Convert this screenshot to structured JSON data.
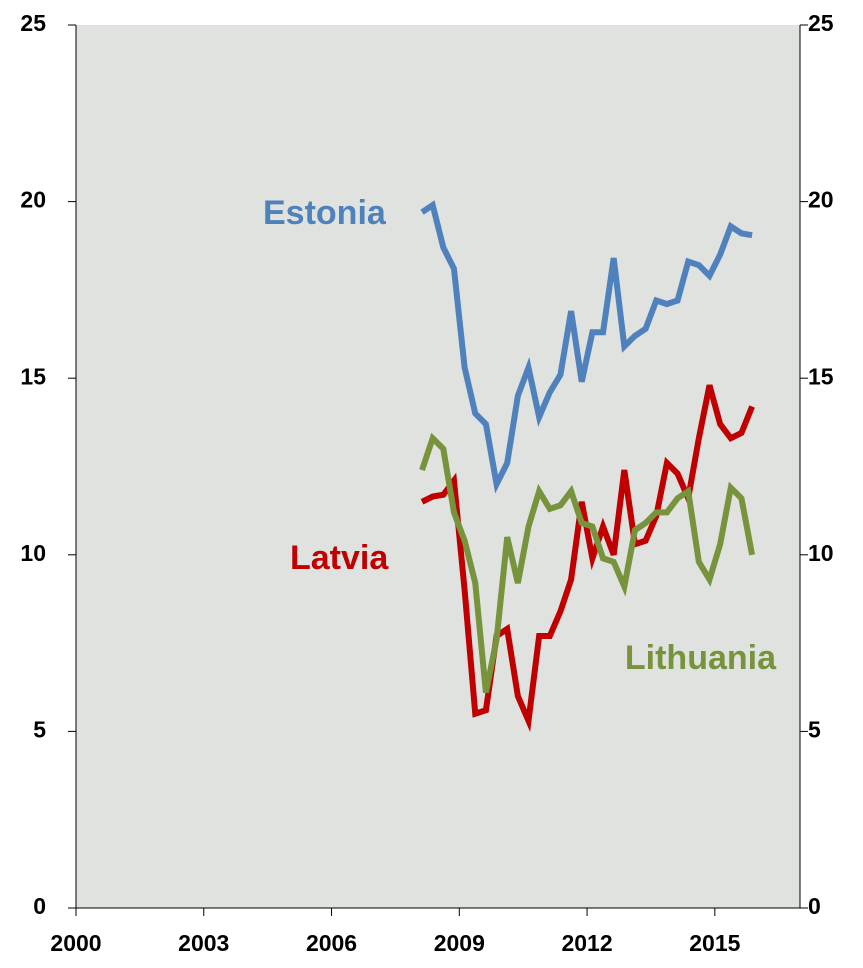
{
  "chart_data": {
    "type": "line",
    "x": [
      2008.125,
      2008.375,
      2008.625,
      2008.875,
      2009.125,
      2009.375,
      2009.625,
      2009.875,
      2010.125,
      2010.375,
      2010.625,
      2010.875,
      2011.125,
      2011.375,
      2011.625,
      2011.875,
      2012.125,
      2012.375,
      2012.625,
      2012.875,
      2013.125,
      2013.375,
      2013.625,
      2013.875,
      2014.125,
      2014.375,
      2014.625,
      2014.875,
      2015.125,
      2015.375,
      2015.625,
      2015.875
    ],
    "series": [
      {
        "name": "Estonia",
        "color": "#4f81bd",
        "values": [
          19.7,
          19.9,
          18.7,
          18.1,
          15.3,
          14.0,
          13.7,
          12.0,
          12.6,
          14.5,
          15.3,
          13.9,
          14.6,
          15.1,
          16.9,
          14.9,
          16.3,
          16.3,
          18.4,
          15.9,
          16.2,
          16.4,
          17.2,
          17.1,
          17.2,
          18.3,
          18.2,
          17.9,
          18.5,
          19.3,
          19.1,
          19.05
        ]
      },
      {
        "name": "Latvia",
        "color": "#c00000",
        "values": [
          11.5,
          11.65,
          11.7,
          12.1,
          9.0,
          5.5,
          5.6,
          7.7,
          7.9,
          6.0,
          5.3,
          7.7,
          7.7,
          8.4,
          9.3,
          11.5,
          9.9,
          10.8,
          10.0,
          12.4,
          10.3,
          10.4,
          11.1,
          12.6,
          12.3,
          11.6,
          13.3,
          14.8,
          13.7,
          13.3,
          13.45,
          14.2
        ]
      },
      {
        "name": "Lithuania",
        "color": "#77933c",
        "values": [
          12.4,
          13.3,
          13.0,
          11.2,
          10.4,
          9.2,
          6.1,
          7.6,
          10.5,
          9.2,
          10.8,
          11.8,
          11.3,
          11.4,
          11.8,
          10.9,
          10.8,
          9.9,
          9.8,
          9.1,
          10.7,
          10.9,
          11.2,
          11.2,
          11.6,
          11.8,
          9.8,
          9.3,
          10.3,
          11.9,
          11.6,
          10.0
        ]
      }
    ],
    "xlim": [
      2000,
      2017
    ],
    "xticks": [
      2000,
      2003,
      2006,
      2009,
      2012,
      2015
    ],
    "ylim": [
      0,
      25
    ],
    "yticks": [
      0,
      5,
      10,
      15,
      20,
      25
    ],
    "y2lim": [
      0,
      25
    ],
    "y2ticks": [
      0,
      5,
      10,
      15,
      20,
      25
    ]
  }
}
